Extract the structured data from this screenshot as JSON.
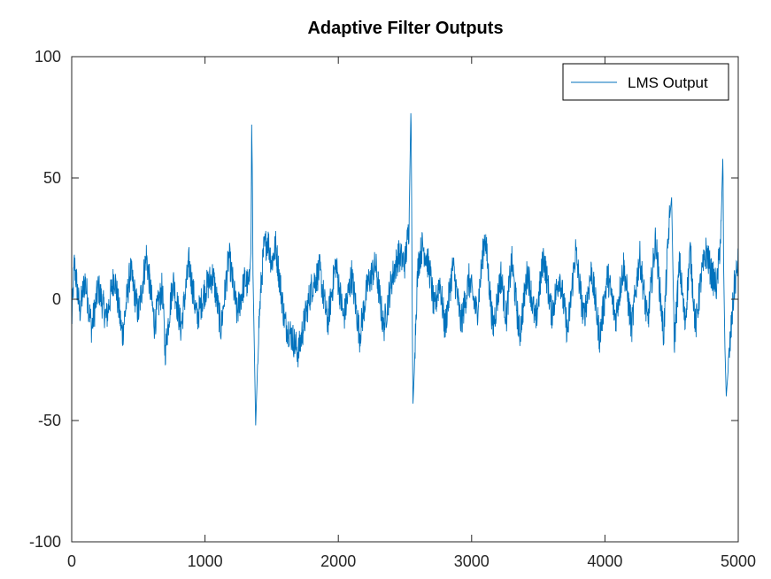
{
  "chart_data": {
    "type": "line",
    "title": "Adaptive Filter Outputs",
    "xlabel": "",
    "ylabel": "",
    "xlim": [
      0,
      5000
    ],
    "ylim": [
      -100,
      100
    ],
    "x_ticks": [
      0,
      1000,
      2000,
      3000,
      4000,
      5000
    ],
    "y_ticks": [
      -100,
      -50,
      0,
      50,
      100
    ],
    "x_tick_labels": [
      "0",
      "1000",
      "2000",
      "3000",
      "4000",
      "5000"
    ],
    "y_tick_labels": [
      "-100",
      "-50",
      "0",
      "50",
      "100"
    ],
    "grid": false,
    "legend_position": "top-right",
    "series": [
      {
        "name": "LMS Output",
        "color": "#0072bd",
        "description_points": {
          "x": [
            0,
            20,
            60,
            100,
            150,
            200,
            260,
            320,
            380,
            440,
            500,
            560,
            620,
            680,
            700,
            760,
            820,
            880,
            940,
            1000,
            1060,
            1120,
            1180,
            1240,
            1300,
            1330,
            1345,
            1350,
            1355,
            1360,
            1370,
            1380,
            1390,
            1400,
            1420,
            1440,
            1470,
            1500,
            1530,
            1560,
            1600,
            1650,
            1700,
            1750,
            1800,
            1860,
            1920,
            1980,
            2040,
            2100,
            2160,
            2220,
            2280,
            2340,
            2400,
            2450,
            2500,
            2530,
            2545,
            2550,
            2555,
            2560,
            2570,
            2580,
            2590,
            2600,
            2630,
            2660,
            2690,
            2720,
            2760,
            2800,
            2860,
            2920,
            2980,
            3040,
            3100,
            3160,
            3220,
            3260,
            3300,
            3360,
            3420,
            3480,
            3540,
            3600,
            3660,
            3720,
            3780,
            3840,
            3900,
            3960,
            4020,
            4080,
            4140,
            4200,
            4260,
            4320,
            4380,
            4440,
            4480,
            4500,
            4520,
            4560,
            4600,
            4640,
            4680,
            4720,
            4760,
            4800,
            4840,
            4870,
            4885,
            4890,
            4900,
            4910,
            4930,
            4950,
            4970,
            5000
          ],
          "y": [
            -10,
            15,
            -5,
            8,
            -12,
            5,
            -8,
            10,
            -15,
            12,
            -6,
            18,
            -10,
            5,
            -22,
            8,
            -12,
            15,
            -8,
            4,
            10,
            -12,
            18,
            -6,
            8,
            5,
            20,
            72,
            52,
            10,
            -20,
            -52,
            -35,
            -15,
            5,
            20,
            25,
            15,
            22,
            8,
            -10,
            -15,
            -22,
            -8,
            5,
            12,
            -10,
            15,
            -8,
            10,
            -15,
            6,
            14,
            -12,
            8,
            18,
            15,
            30,
            80,
            40,
            -10,
            -43,
            -30,
            -10,
            5,
            15,
            22,
            18,
            10,
            -5,
            8,
            -12,
            14,
            -10,
            8,
            -6,
            27,
            -12,
            10,
            -8,
            16,
            -15,
            12,
            -10,
            18,
            -6,
            10,
            -14,
            20,
            -8,
            12,
            -16,
            10,
            -8,
            14,
            -12,
            18,
            -10,
            25,
            -15,
            30,
            42,
            -18,
            15,
            -10,
            20,
            -12,
            8,
            20,
            10,
            5,
            28,
            60,
            15,
            -20,
            -40,
            -25,
            -10,
            5,
            15
          ]
        }
      }
    ]
  }
}
